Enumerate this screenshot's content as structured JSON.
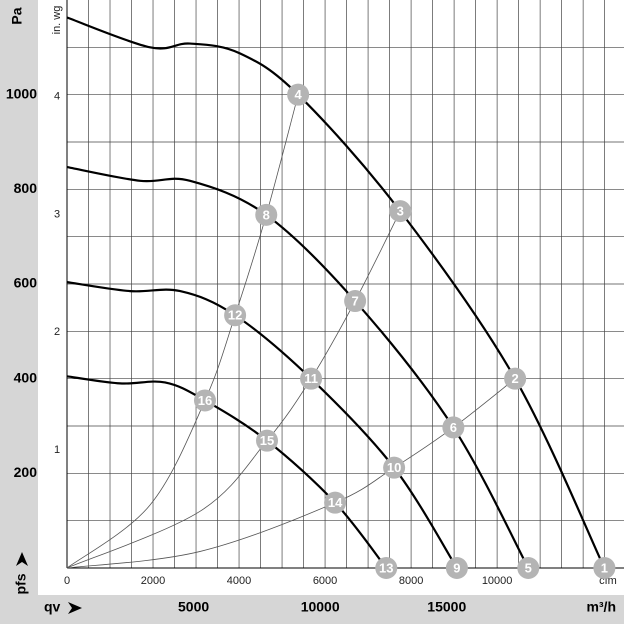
{
  "chart_data": {
    "type": "line",
    "y_label": "Pa",
    "y2_label": "in. wg",
    "x_label": "m³/h",
    "x2_label": "cfm",
    "x_axis_name": "qv",
    "y_axis_name": "pfs",
    "xlim": [
      0,
      22000
    ],
    "xticks": [
      5000,
      10000,
      15000
    ],
    "x2lim": [
      0,
      12950
    ],
    "x2ticks": [
      0,
      2000,
      4000,
      6000,
      8000,
      10000
    ],
    "ylim": [
      0,
      1200
    ],
    "yticks": [
      200,
      400,
      600,
      800,
      1000
    ],
    "y2lim": [
      0,
      4.82
    ],
    "y2ticks": [
      1,
      2,
      3,
      4
    ],
    "x2_grid_step": 500,
    "y_grid_step": 100,
    "grid": true,
    "series": [
      {
        "color": "#000000",
        "x": [
          0,
          3280,
          4860,
          6840,
          9130,
          13160,
          17700,
          21225
        ],
        "y": [
          1163,
          1100,
          1108,
          1087,
          1000,
          754,
          400,
          0
        ]
      },
      {
        "color": "#000000",
        "x": [
          0,
          2885,
          4860,
          7870,
          11380,
          15260,
          18220
        ],
        "y": [
          847,
          818,
          818,
          746,
          564,
          297,
          0
        ]
      },
      {
        "color": "#000000",
        "x": [
          0,
          2490,
          4470,
          6640,
          9640,
          12920,
          15400
        ],
        "y": [
          604,
          585,
          585,
          534,
          400,
          212,
          0
        ]
      },
      {
        "color": "#000000",
        "x": [
          0,
          2095,
          3870,
          5450,
          7900,
          10590,
          12610
        ],
        "y": [
          405,
          390,
          392,
          354,
          269,
          138,
          0
        ]
      }
    ],
    "system_curves": [
      {
        "color": "#555555",
        "x": [
          0,
          3280,
          5450,
          6640,
          7870,
          9130
        ],
        "y": [
          0,
          133,
          354,
          534,
          746,
          1000
        ]
      },
      {
        "color": "#555555",
        "x": [
          0,
          5260,
          7900,
          9640,
          11380,
          13160
        ],
        "y": [
          0,
          120,
          269,
          400,
          564,
          754
        ]
      },
      {
        "color": "#555555",
        "x": [
          0,
          5260,
          10590,
          12920,
          15260,
          17700
        ],
        "y": [
          0,
          35,
          138,
          212,
          297,
          400
        ]
      }
    ],
    "points": [
      {
        "label": "1",
        "x": 21225,
        "y": 0
      },
      {
        "label": "2",
        "x": 17700,
        "y": 400
      },
      {
        "label": "3",
        "x": 13160,
        "y": 754
      },
      {
        "label": "4",
        "x": 9130,
        "y": 1000
      },
      {
        "label": "5",
        "x": 18220,
        "y": 0
      },
      {
        "label": "6",
        "x": 15260,
        "y": 297
      },
      {
        "label": "7",
        "x": 11380,
        "y": 564
      },
      {
        "label": "8",
        "x": 7870,
        "y": 746
      },
      {
        "label": "9",
        "x": 15400,
        "y": 0
      },
      {
        "label": "10",
        "x": 12920,
        "y": 212
      },
      {
        "label": "11",
        "x": 9640,
        "y": 400
      },
      {
        "label": "12",
        "x": 6640,
        "y": 534
      },
      {
        "label": "13",
        "x": 12610,
        "y": 0
      },
      {
        "label": "14",
        "x": 10590,
        "y": 138
      },
      {
        "label": "15",
        "x": 7900,
        "y": 269
      },
      {
        "label": "16",
        "x": 5450,
        "y": 354
      }
    ],
    "point_color": "#b4b4b4"
  }
}
